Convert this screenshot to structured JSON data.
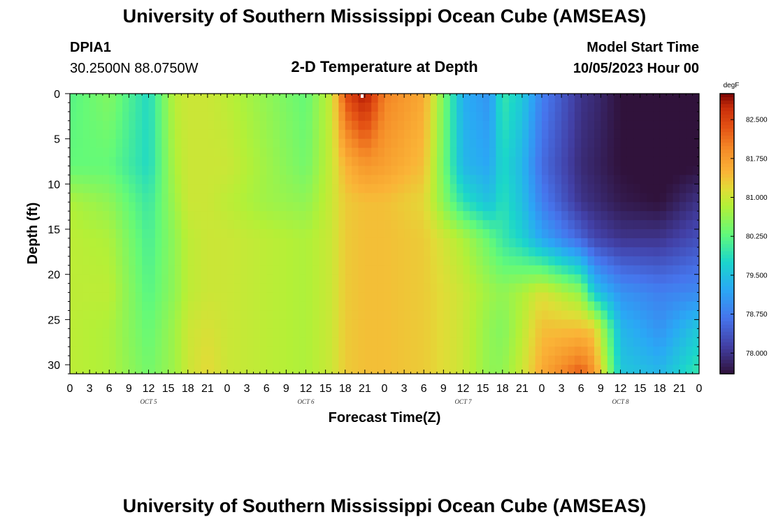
{
  "page": {
    "title": "University of Southern Mississippi Ocean Cube (AMSEAS)",
    "footer_title": "University of Southern Mississippi Ocean Cube (AMSEAS)",
    "station": "DPIA1",
    "coords": "30.2500N  88.0750W",
    "plot_title": "2-D Temperature at Depth",
    "model_label": "Model Start Time",
    "model_time": "10/05/2023 Hour 00"
  },
  "chart_data": {
    "type": "heatmap",
    "title": "2-D Temperature at Depth",
    "xlabel": "Forecast Time(Z)",
    "ylabel": "Depth (ft)",
    "x_hours": [
      0,
      96
    ],
    "x_tick_labels": [
      "0",
      "3",
      "6",
      "9",
      "12",
      "15",
      "18",
      "21",
      "0",
      "3",
      "6",
      "9",
      "12",
      "15",
      "18",
      "21",
      "0",
      "3",
      "6",
      "9",
      "12",
      "15",
      "18",
      "21",
      "0",
      "3",
      "6",
      "9",
      "12",
      "15",
      "18",
      "21",
      "0"
    ],
    "day_labels": [
      "OCT 5",
      "OCT 6",
      "OCT 7",
      "OCT 8"
    ],
    "ylim": [
      0,
      31
    ],
    "y_ticks": [
      0,
      5,
      10,
      15,
      20,
      25,
      30
    ],
    "colorbar": {
      "unit": "degF",
      "range": [
        77.6,
        83.0
      ],
      "ticks": [
        "82.500",
        "81.750",
        "81.000",
        "80.250",
        "79.500",
        "78.750",
        "78.000"
      ],
      "tick_values": [
        82.5,
        81.75,
        81.0,
        80.25,
        79.5,
        78.75,
        78.0
      ]
    },
    "depths_ft": [
      0,
      8,
      12,
      16,
      22,
      26,
      31
    ],
    "times_h": [
      0,
      6,
      12,
      16,
      18,
      21,
      24,
      30,
      36,
      40,
      42,
      45,
      48,
      54,
      60,
      64,
      66,
      69,
      72,
      78,
      80,
      84,
      90,
      96
    ],
    "values_degF": [
      [
        80.2,
        80.5,
        79.8,
        80.9,
        81.0,
        81.0,
        80.9,
        80.6,
        80.3,
        81.0,
        82.4,
        82.9,
        82.0,
        81.6,
        79.3,
        79.0,
        80.0,
        79.6,
        78.8,
        78.0,
        77.9,
        77.6,
        77.5,
        77.6
      ],
      [
        80.3,
        80.3,
        79.8,
        80.8,
        81.0,
        81.0,
        81.0,
        80.7,
        80.4,
        81.0,
        81.5,
        81.8,
        81.7,
        81.4,
        79.4,
        79.2,
        79.8,
        79.4,
        78.6,
        77.9,
        77.8,
        77.6,
        77.5,
        77.6
      ],
      [
        80.8,
        80.6,
        80.0,
        80.7,
        81.0,
        81.0,
        80.9,
        80.7,
        80.6,
        81.0,
        81.3,
        81.4,
        81.4,
        81.2,
        79.9,
        79.5,
        79.9,
        79.5,
        78.8,
        78.0,
        77.9,
        77.7,
        77.6,
        78.0
      ],
      [
        80.9,
        80.8,
        80.1,
        80.6,
        80.9,
        81.0,
        81.0,
        80.9,
        80.8,
        81.0,
        81.3,
        81.4,
        81.4,
        81.3,
        80.8,
        80.3,
        80.0,
        79.7,
        79.2,
        78.5,
        78.2,
        78.0,
        78.0,
        78.3
      ],
      [
        80.9,
        80.9,
        80.2,
        80.6,
        80.9,
        81.0,
        81.0,
        80.9,
        80.8,
        81.0,
        81.3,
        81.4,
        81.4,
        81.3,
        81.0,
        80.7,
        80.6,
        80.8,
        81.1,
        80.6,
        79.6,
        79.0,
        78.8,
        78.9
      ],
      [
        80.9,
        80.8,
        80.3,
        80.7,
        81.0,
        81.1,
        81.0,
        80.9,
        80.8,
        81.0,
        81.3,
        81.4,
        81.4,
        81.3,
        81.0,
        80.6,
        80.5,
        80.9,
        81.4,
        81.4,
        81.3,
        79.4,
        79.0,
        79.6
      ],
      [
        80.9,
        80.8,
        80.4,
        80.7,
        81.0,
        81.2,
        81.0,
        80.9,
        80.8,
        81.0,
        81.3,
        81.4,
        81.4,
        81.3,
        81.0,
        80.6,
        80.6,
        81.0,
        81.6,
        82.3,
        81.8,
        79.6,
        79.4,
        80.0
      ]
    ]
  }
}
